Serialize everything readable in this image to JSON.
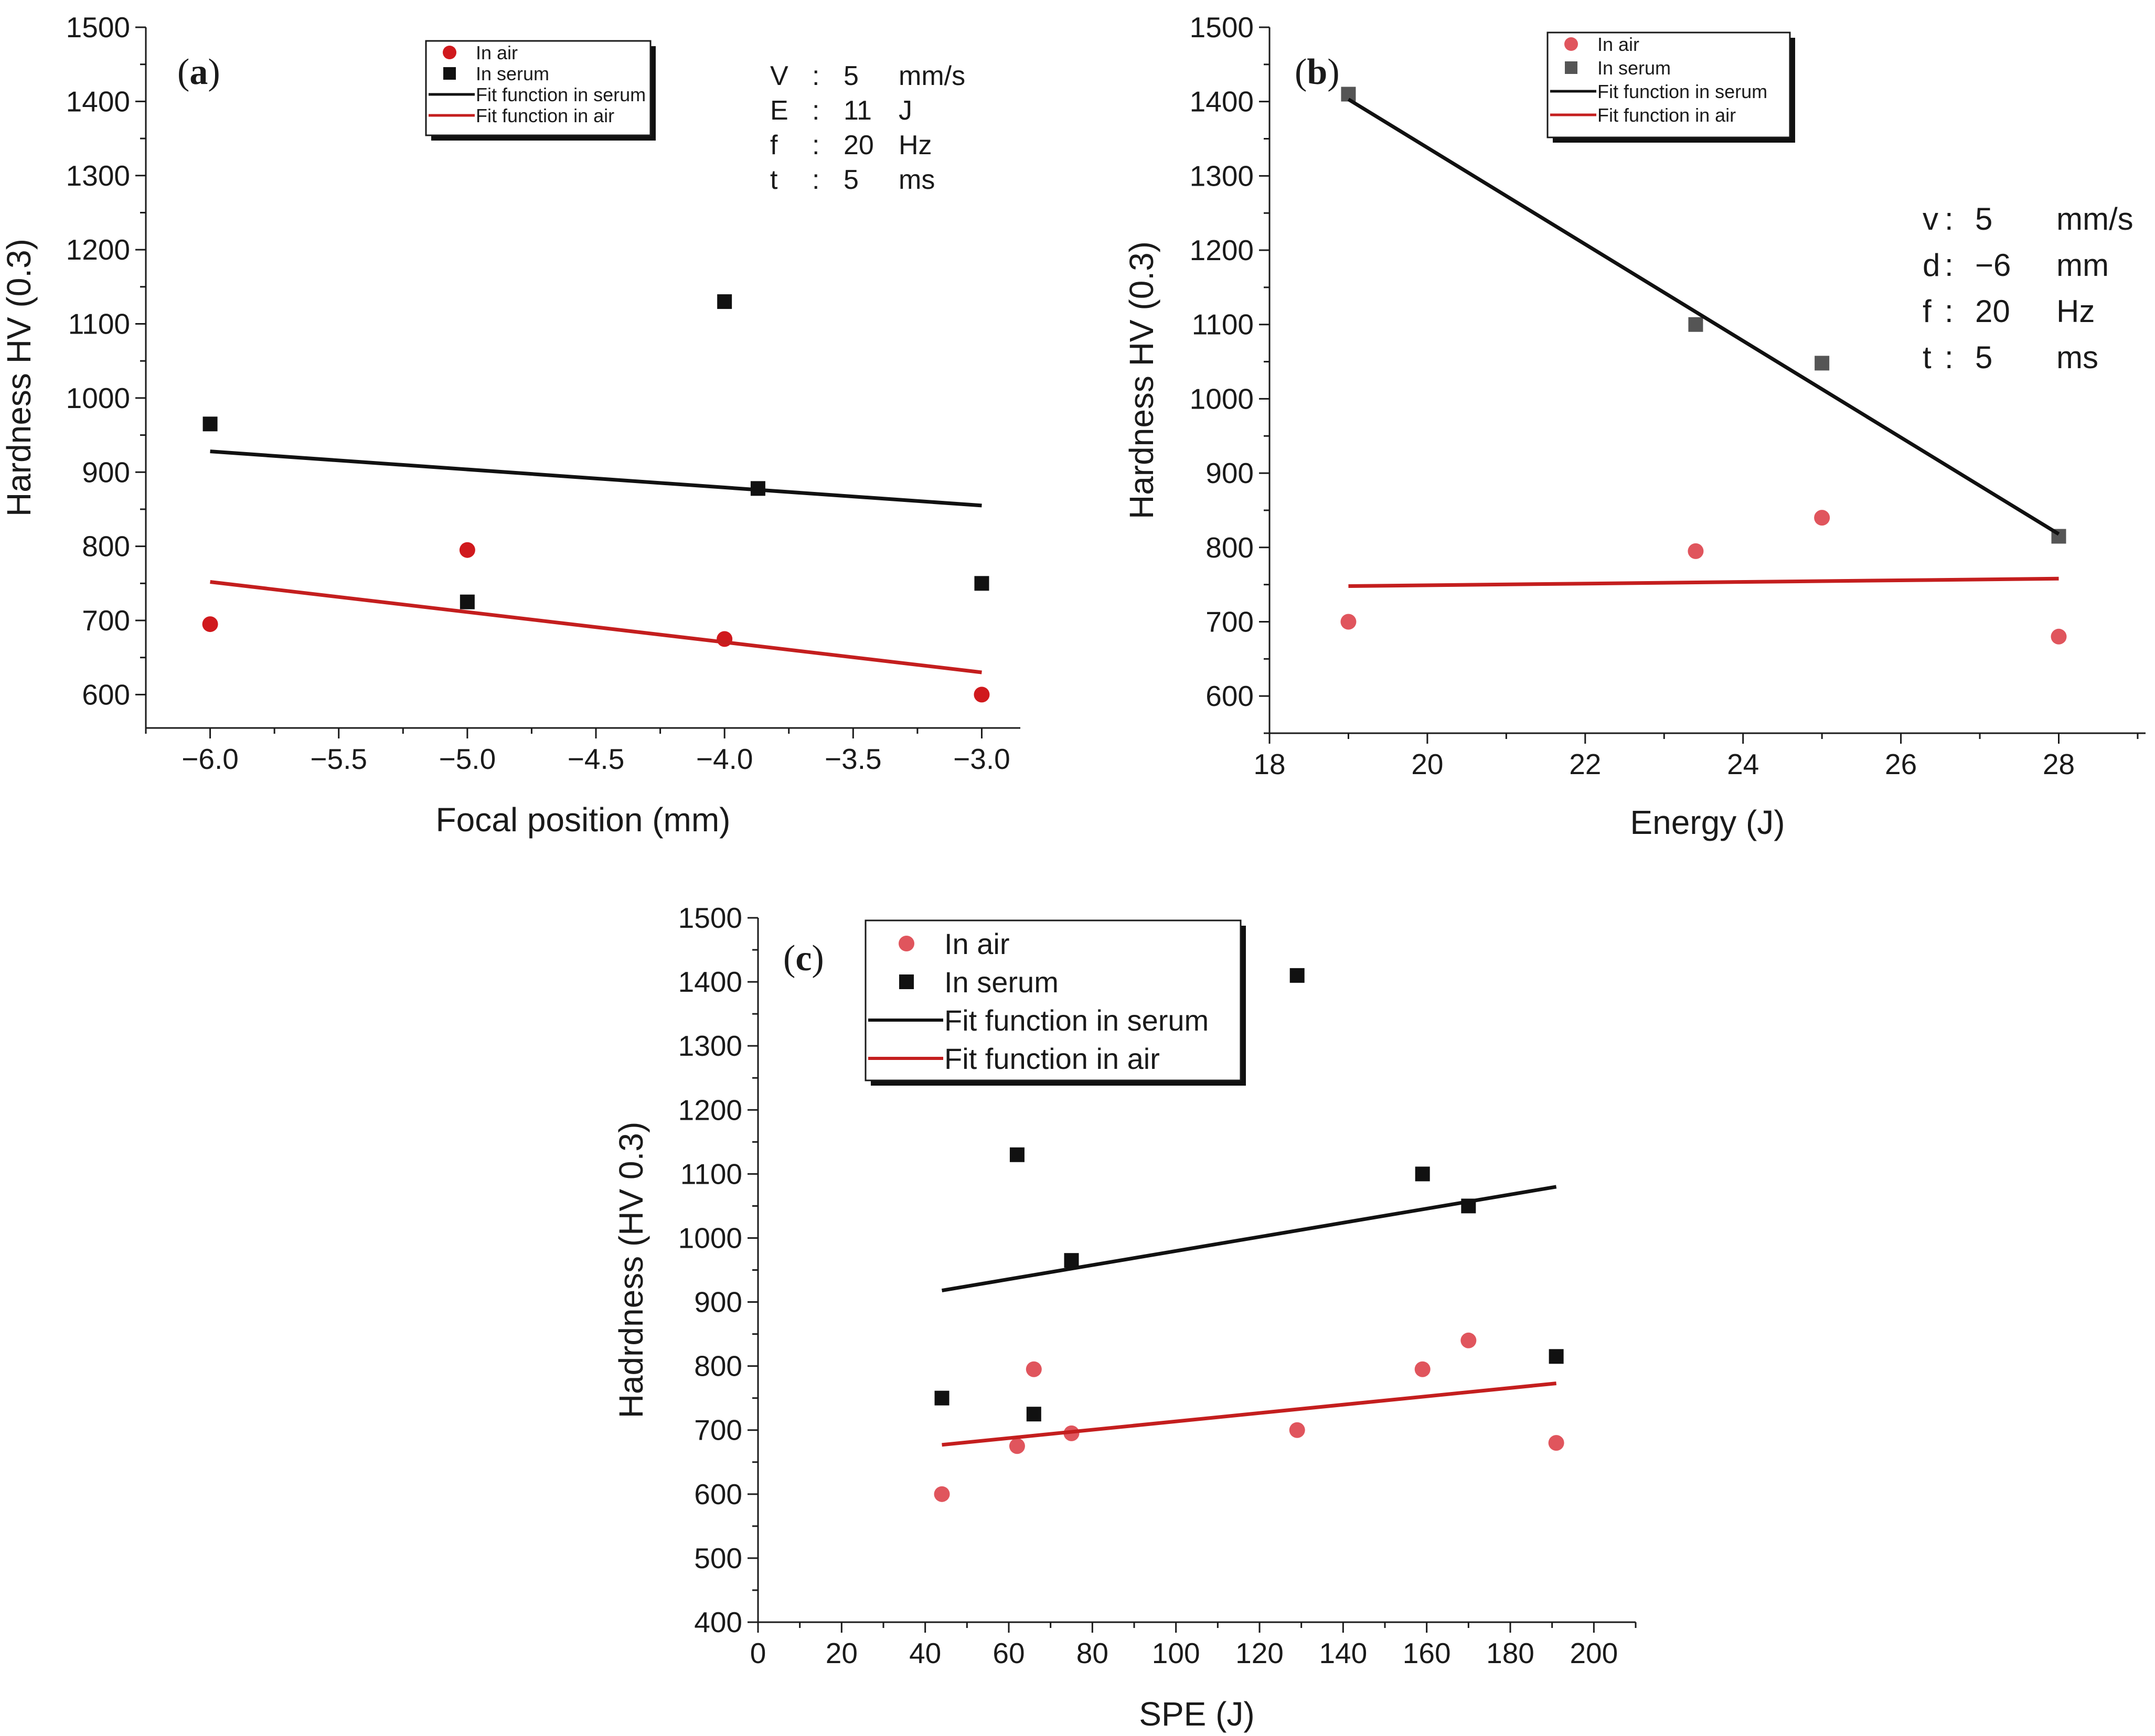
{
  "chart_data": [
    {
      "type": "scatter",
      "panel_label": {
        "open": "(",
        "letter": "a",
        "close": ")"
      },
      "title": "",
      "xlabel": "Focal position (mm)",
      "ylabel": "Hardness HV (0.3)",
      "xlim": [
        -6.25,
        -2.85
      ],
      "ylim": [
        555,
        1500
      ],
      "xticks": [
        -6.0,
        -5.5,
        -5.0,
        -4.5,
        -4.0,
        -3.5,
        -3.0
      ],
      "xtick_labels": [
        "−6.0",
        "−5.5",
        "−5.0",
        "−4.5",
        "−4.0",
        "−3.5",
        "−3.0"
      ],
      "yticks": [
        600,
        700,
        800,
        900,
        1000,
        1100,
        1200,
        1300,
        1400,
        1500
      ],
      "ytick_labels": [
        "600",
        "700",
        "800",
        "900",
        "1000",
        "1100",
        "1200",
        "1300",
        "1400",
        "1500"
      ],
      "legend_style": "small",
      "legend": [
        "In air",
        "In serum",
        "Fit function in serum",
        "Fit function in air"
      ],
      "series": [
        {
          "name": "In air",
          "kind": "points",
          "marker": "circle",
          "color": "#d0191d",
          "x": [
            -6.0,
            -5.0,
            -4.0,
            -3.0
          ],
          "y": [
            695,
            795,
            675,
            600
          ]
        },
        {
          "name": "In serum",
          "kind": "points",
          "marker": "square",
          "color": "#111111",
          "x": [
            -6.0,
            -5.0,
            -4.0,
            -3.87,
            -3.0
          ],
          "y": [
            965,
            725,
            1130,
            878,
            750
          ]
        },
        {
          "name": "Fit function in serum",
          "kind": "line",
          "color": "#111111",
          "x": [
            -6.0,
            -3.0
          ],
          "y": [
            928,
            855
          ]
        },
        {
          "name": "Fit function in air",
          "kind": "line",
          "color": "#c41e1e",
          "x": [
            -6.0,
            -3.0
          ],
          "y": [
            752,
            630
          ]
        }
      ],
      "params": [
        {
          "symbol": "V",
          "sep": ":",
          "value": "5",
          "unit": "mm/s"
        },
        {
          "symbol": "E",
          "sep": ":",
          "value": "11",
          "unit": "J"
        },
        {
          "symbol": "f",
          "sep": ":",
          "value": "20",
          "unit": "Hz"
        },
        {
          "symbol": "t",
          "sep": ":",
          "value": "5",
          "unit": "ms"
        }
      ]
    },
    {
      "type": "scatter",
      "panel_label": {
        "open": "(",
        "letter": "b",
        "close": ")"
      },
      "title": "",
      "xlabel": "Energy (J)",
      "ylabel": "Hardness HV (0.3)",
      "xlim": [
        18,
        29.1
      ],
      "ylim": [
        550,
        1500
      ],
      "xticks": [
        18,
        20,
        22,
        24,
        26,
        28
      ],
      "xtick_labels": [
        "18",
        "20",
        "22",
        "24",
        "26",
        "28"
      ],
      "yticks": [
        600,
        700,
        800,
        900,
        1000,
        1100,
        1200,
        1300,
        1400,
        1500
      ],
      "ytick_labels": [
        "600",
        "700",
        "800",
        "900",
        "1000",
        "1100",
        "1200",
        "1300",
        "1400",
        "1500"
      ],
      "legend_style": "small",
      "legend": [
        "In air",
        "In serum",
        "Fit function in serum",
        "Fit function in air"
      ],
      "series": [
        {
          "name": "In air",
          "kind": "points",
          "marker": "circle",
          "color": "#e0555d",
          "x": [
            19.0,
            23.4,
            25.0,
            28.0
          ],
          "y": [
            700,
            795,
            840,
            680
          ]
        },
        {
          "name": "In serum",
          "kind": "points",
          "marker": "square",
          "color": "#555555",
          "x": [
            19.0,
            23.4,
            25.0,
            28.0
          ],
          "y": [
            1410,
            1100,
            1048,
            815
          ]
        },
        {
          "name": "Fit function in serum",
          "kind": "line",
          "color": "#111111",
          "x": [
            19.0,
            28.0
          ],
          "y": [
            1403,
            818
          ]
        },
        {
          "name": "Fit function in air",
          "kind": "line",
          "color": "#c41e1e",
          "x": [
            19.0,
            28.0
          ],
          "y": [
            748,
            758
          ]
        }
      ],
      "params": [
        {
          "symbol": "v",
          "sep": ":",
          "value": "5",
          "unit": "mm/s"
        },
        {
          "symbol": "d",
          "sep": ":",
          "value": "−6",
          "unit": "mm"
        },
        {
          "symbol": "f",
          "sep": ":",
          "value": "20",
          "unit": "Hz"
        },
        {
          "symbol": "t",
          "sep": ":",
          "value": "5",
          "unit": "ms"
        }
      ]
    },
    {
      "type": "scatter",
      "panel_label": {
        "open": "(",
        "letter": "c",
        "close": ")"
      },
      "title": "",
      "xlabel": "SPE (J)",
      "ylabel": "Hadrdness (HV 0.3)",
      "xlim": [
        0,
        210
      ],
      "ylim": [
        400,
        1500
      ],
      "xticks": [
        0,
        20,
        40,
        60,
        80,
        100,
        120,
        140,
        160,
        180,
        200
      ],
      "xtick_labels": [
        "0",
        "20",
        "40",
        "60",
        "80",
        "100",
        "120",
        "140",
        "160",
        "180",
        "200"
      ],
      "yticks": [
        400,
        500,
        600,
        700,
        800,
        900,
        1000,
        1100,
        1200,
        1300,
        1400,
        1500
      ],
      "ytick_labels": [
        "400",
        "500",
        "600",
        "700",
        "800",
        "900",
        "1000",
        "1100",
        "1200",
        "1300",
        "1400",
        "1500"
      ],
      "legend_style": "large",
      "legend": [
        "In air",
        "In serum",
        "Fit function in serum",
        "Fit function in air"
      ],
      "series": [
        {
          "name": "In air",
          "kind": "points",
          "marker": "circle",
          "color": "#e0555d",
          "x": [
            44,
            62,
            66,
            75,
            129,
            159,
            170,
            191
          ],
          "y": [
            600,
            675,
            795,
            695,
            700,
            795,
            840,
            680
          ]
        },
        {
          "name": "In serum",
          "kind": "points",
          "marker": "square",
          "color": "#111111",
          "x": [
            44,
            62,
            66,
            75,
            129,
            159,
            170,
            191
          ],
          "y": [
            750,
            1130,
            725,
            965,
            1410,
            1100,
            1050,
            815
          ]
        },
        {
          "name": "Fit function in serum",
          "kind": "line",
          "color": "#111111",
          "x": [
            44,
            191
          ],
          "y": [
            918,
            1080
          ]
        },
        {
          "name": "Fit function in air",
          "kind": "line",
          "color": "#c41e1e",
          "x": [
            44,
            191
          ],
          "y": [
            677,
            773
          ]
        }
      ],
      "params": []
    }
  ]
}
